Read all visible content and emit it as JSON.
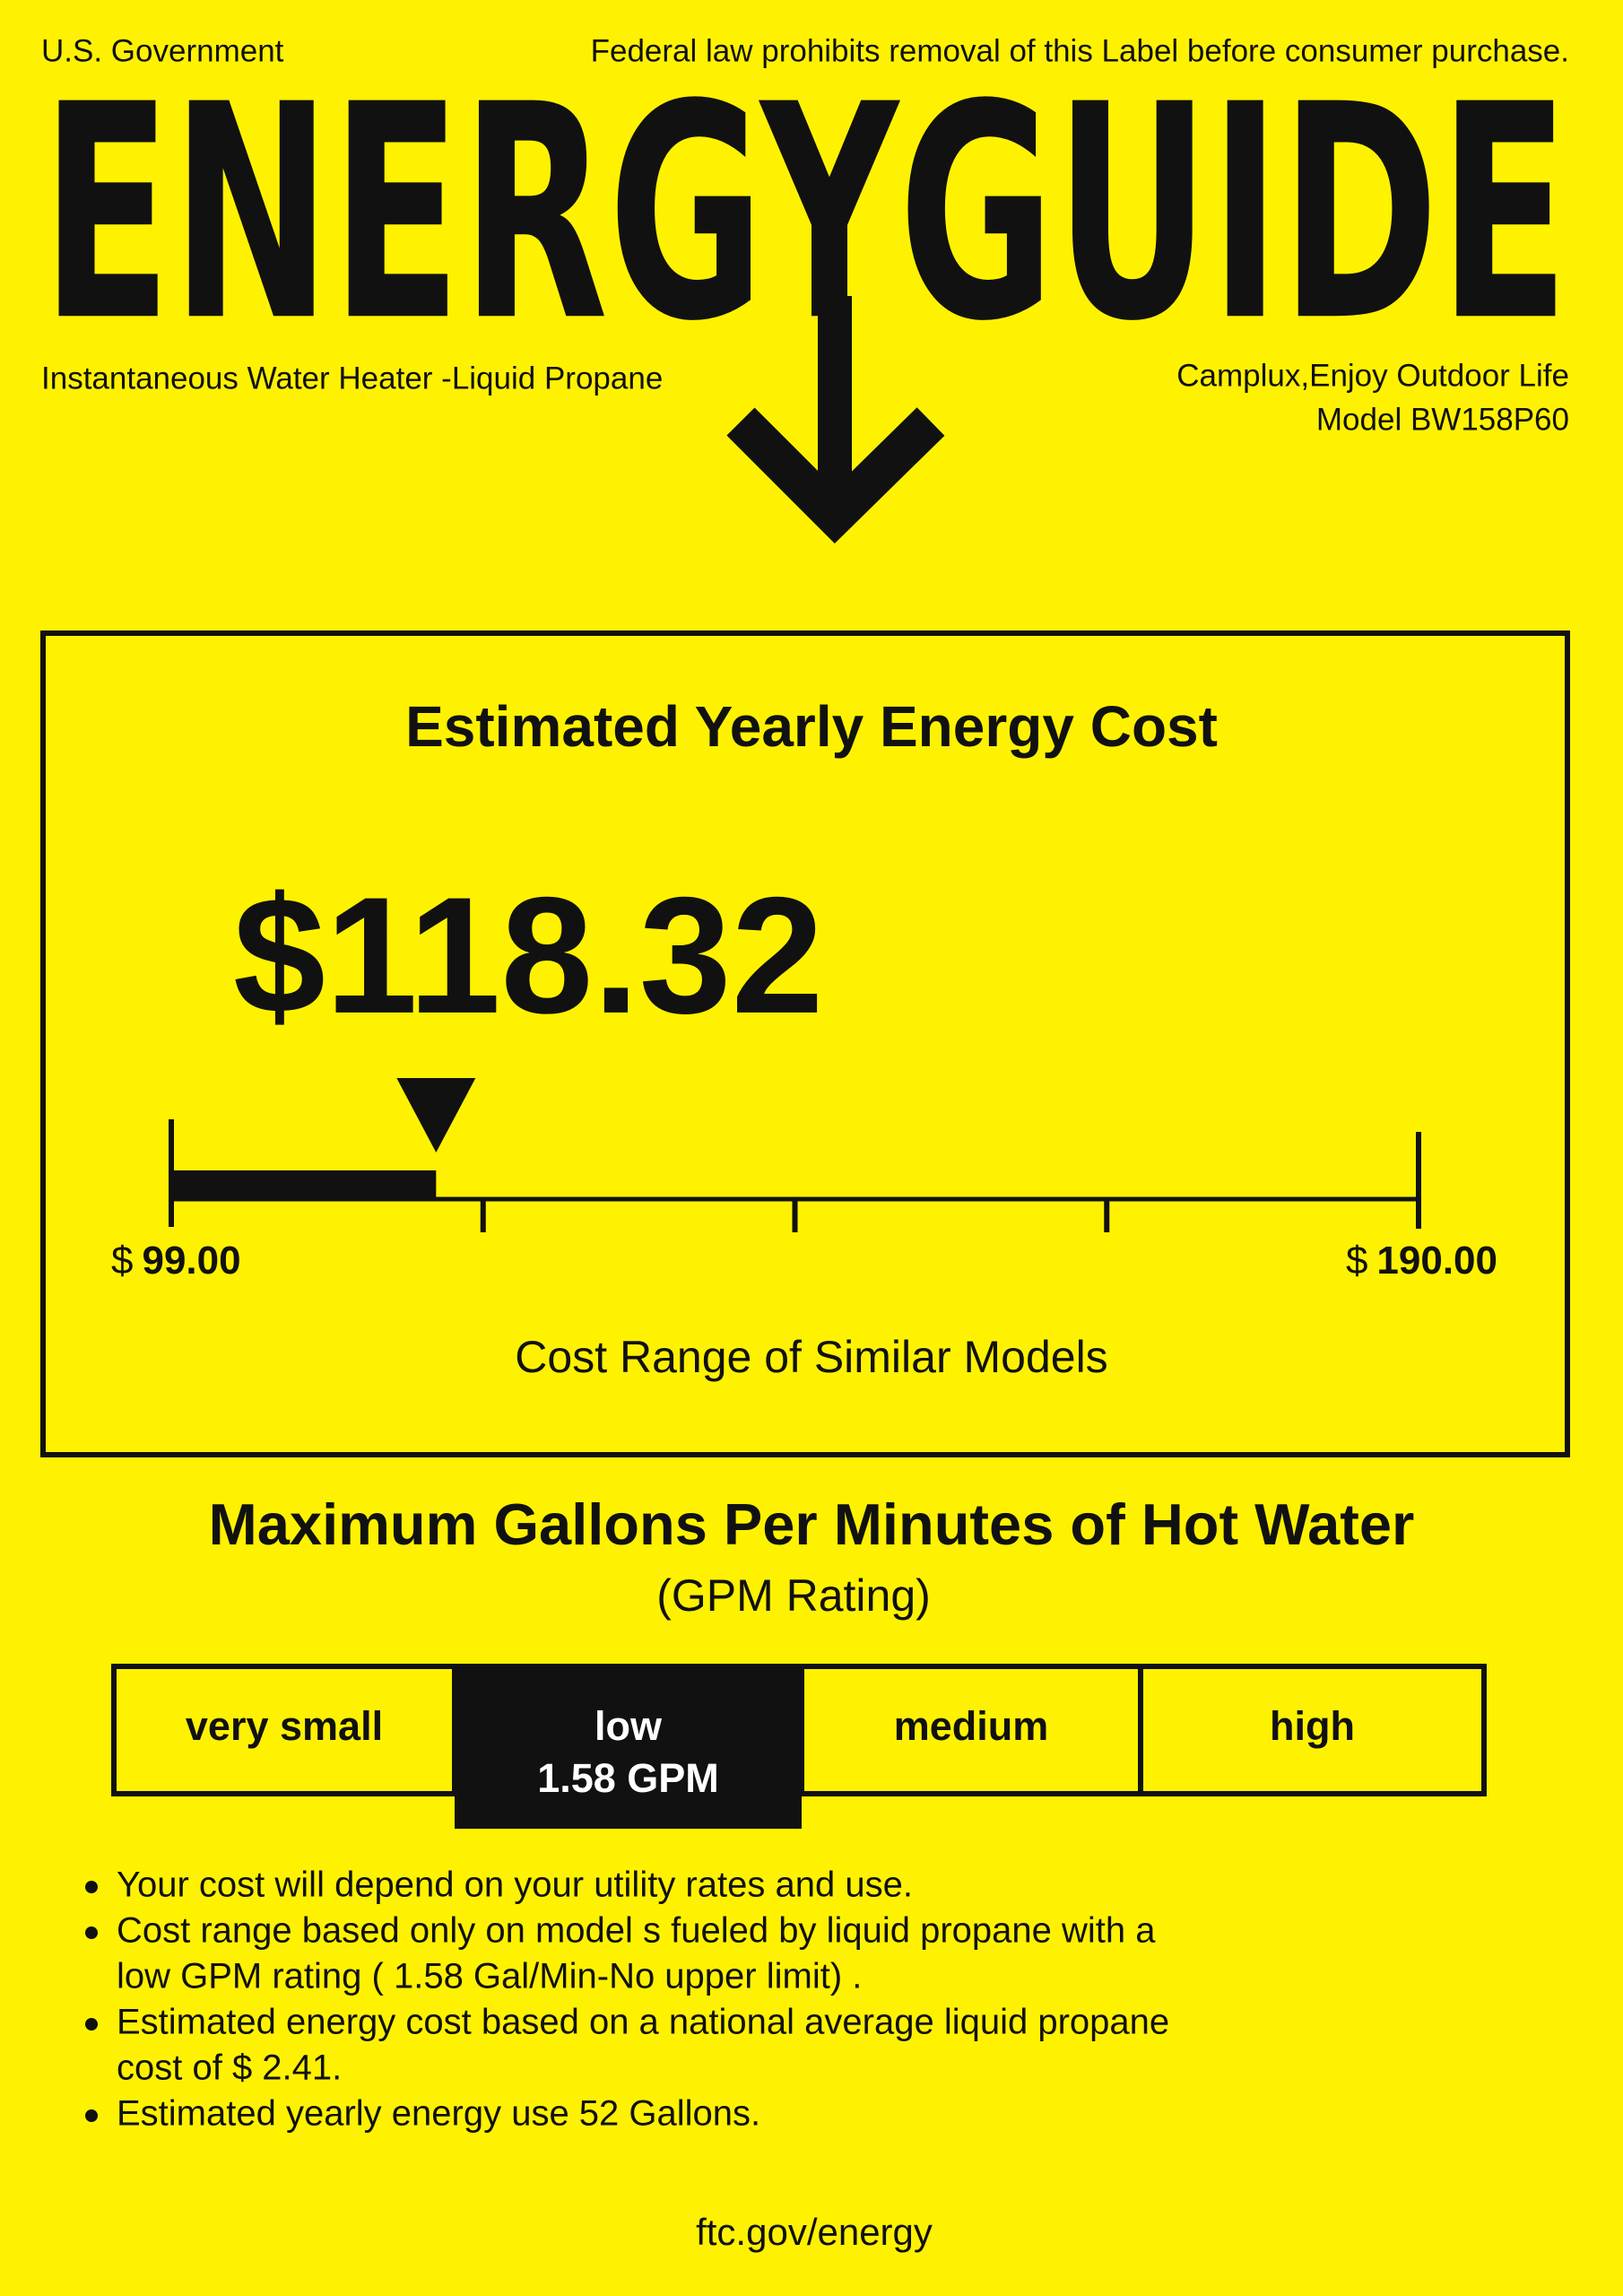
{
  "header": {
    "government": "U.S. Government",
    "notice": "Federal law prohibits removal of this Label before consumer purchase.",
    "logo": "ENERGYGUIDE",
    "product": "Instantaneous Water Heater -Liquid Propane",
    "manufacturer": "Camplux,Enjoy Outdoor Life",
    "model": "Model BW158P60"
  },
  "cost": {
    "title": "Estimated Yearly Energy Cost",
    "amount": {
      "value": 118.32,
      "label": "$118.32"
    },
    "range": {
      "min": {
        "value": 99,
        "symbol": "$",
        "amount": "99.00"
      },
      "max": {
        "value": 190,
        "symbol": "$",
        "amount": "190.00"
      }
    },
    "caption": "Cost Range of Similar Models"
  },
  "gpm": {
    "title": "Maximum Gallons Per Minutes of Hot Water",
    "subtitle": "(GPM Rating)",
    "categories": [
      "very small",
      "low",
      "medium",
      "high"
    ],
    "selected": 1,
    "rating": "1.58 GPM"
  },
  "notes": [
    [
      "Your cost will depend on your utility rates and use."
    ],
    [
      "Cost range based only on model s fueled by liquid propane with a",
      "low GPM rating ( 1.58 Gal/Min-No upper limit) ."
    ],
    [
      "Estimated energy cost based on a national average liquid propane",
      "cost of  $ 2.41."
    ],
    [
      "Estimated yearly energy use 52 Gallons."
    ]
  ],
  "footer": "ftc.gov/energy"
}
